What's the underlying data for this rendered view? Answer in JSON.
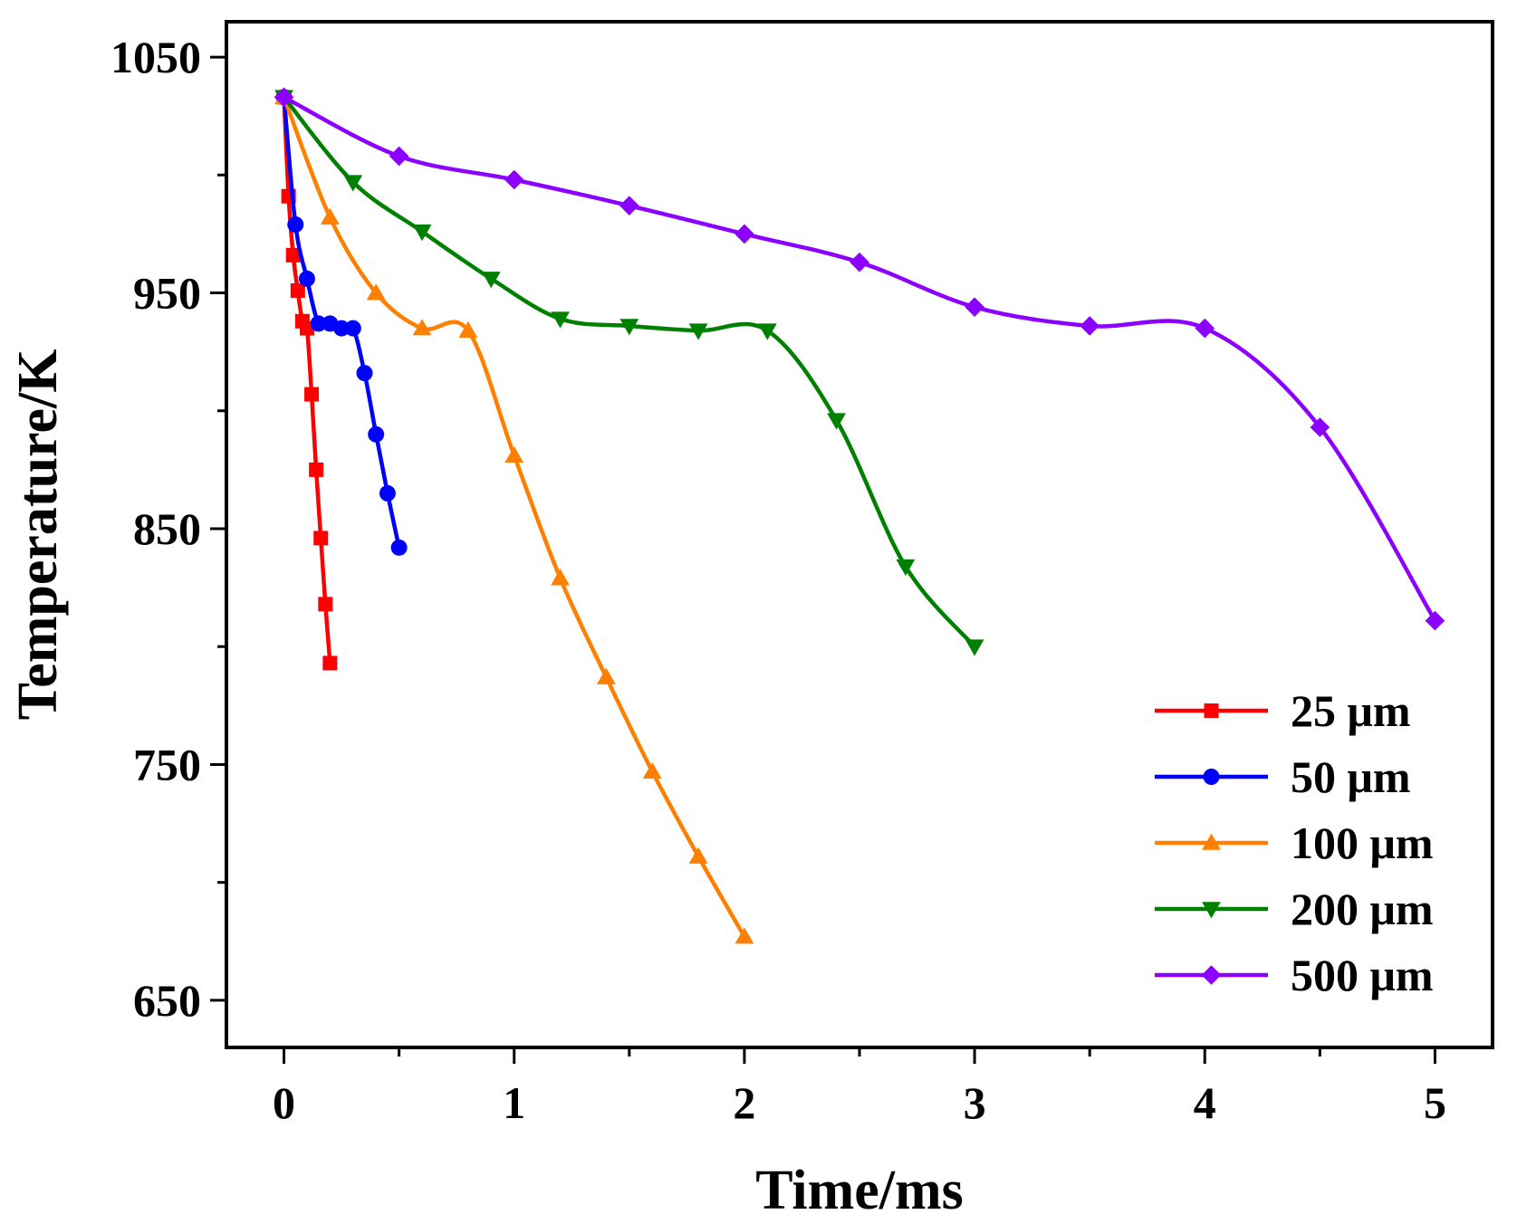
{
  "chart_data": {
    "type": "line",
    "title": "",
    "xlabel": "Time/ms",
    "ylabel": "Temperature/K",
    "xlim": [
      -0.25,
      5.25
    ],
    "ylim": [
      630,
      1065
    ],
    "x_ticks": [
      0,
      1,
      2,
      3,
      4,
      5
    ],
    "x_tick_labels": [
      "0",
      "1",
      "2",
      "3",
      "4",
      "5"
    ],
    "x_minor_ticks": [
      0.5,
      1.5,
      2.5,
      3.5,
      4.5
    ],
    "y_ticks": [
      650,
      750,
      850,
      950,
      1050
    ],
    "y_tick_labels": [
      "650",
      "750",
      "850",
      "950",
      "1050"
    ],
    "y_minor_ticks": [
      700,
      800,
      900,
      1000
    ],
    "grid": false,
    "legend_position": "bottom-right",
    "series": [
      {
        "name": "25 μm",
        "color": "#ff0000",
        "marker": "square",
        "x": [
          0,
          0.02,
          0.04,
          0.06,
          0.08,
          0.1,
          0.12,
          0.14,
          0.16,
          0.18,
          0.2
        ],
        "y": [
          1033,
          991,
          966,
          951,
          938,
          935,
          907,
          875,
          846,
          818,
          793
        ]
      },
      {
        "name": "50 μm",
        "color": "#0000ff",
        "marker": "circle",
        "x": [
          0,
          0.05,
          0.1,
          0.15,
          0.2,
          0.25,
          0.3,
          0.35,
          0.4,
          0.45,
          0.5
        ],
        "y": [
          1033,
          979,
          956,
          937,
          937,
          935,
          935,
          916,
          890,
          865,
          842
        ]
      },
      {
        "name": "100 μm",
        "color": "#ff8000",
        "marker": "triangle-up",
        "x": [
          0,
          0.2,
          0.4,
          0.6,
          0.8,
          1.0,
          1.2,
          1.4,
          1.6,
          1.8,
          2.0
        ],
        "y": [
          1033,
          982,
          950,
          935,
          934,
          881,
          829,
          787,
          747,
          711,
          677
        ]
      },
      {
        "name": "200 μm",
        "color": "#008000",
        "marker": "triangle-down",
        "x": [
          0,
          0.3,
          0.6,
          0.9,
          1.2,
          1.5,
          1.8,
          2.1,
          2.4,
          2.7,
          3.0
        ],
        "y": [
          1033,
          997,
          976,
          956,
          939,
          936,
          934,
          934,
          896,
          834,
          800
        ]
      },
      {
        "name": "500 μm",
        "color": "#8b00ff",
        "marker": "diamond",
        "x": [
          0,
          0.5,
          1.0,
          1.5,
          2.0,
          2.5,
          3.0,
          3.5,
          4.0,
          4.5,
          5.0
        ],
        "y": [
          1033,
          1008,
          998,
          987,
          975,
          963,
          944,
          936,
          935,
          893,
          811
        ]
      }
    ]
  }
}
